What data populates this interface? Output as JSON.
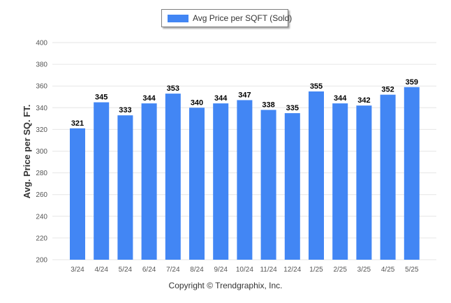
{
  "chart_data": {
    "type": "bar",
    "title": "",
    "xlabel": "",
    "ylabel": "Avg. Price per SQ. FT.",
    "ylim": [
      200,
      400
    ],
    "yticks": [
      200,
      220,
      240,
      260,
      280,
      300,
      320,
      340,
      360,
      380,
      400
    ],
    "grid": true,
    "legend_position": "top-center",
    "categories": [
      "3/24",
      "4/24",
      "5/24",
      "6/24",
      "7/24",
      "8/24",
      "9/24",
      "10/24",
      "11/24",
      "12/24",
      "1/25",
      "2/25",
      "3/25",
      "4/25",
      "5/25"
    ],
    "series": [
      {
        "name": "Avg Price per SQFT (Sold)",
        "color": "#4286f4",
        "values": [
          321,
          345,
          333,
          344,
          353,
          340,
          344,
          347,
          338,
          335,
          355,
          344,
          342,
          352,
          359
        ]
      }
    ]
  },
  "footer": {
    "copyright": "Copyright © Trendgraphix, Inc."
  }
}
